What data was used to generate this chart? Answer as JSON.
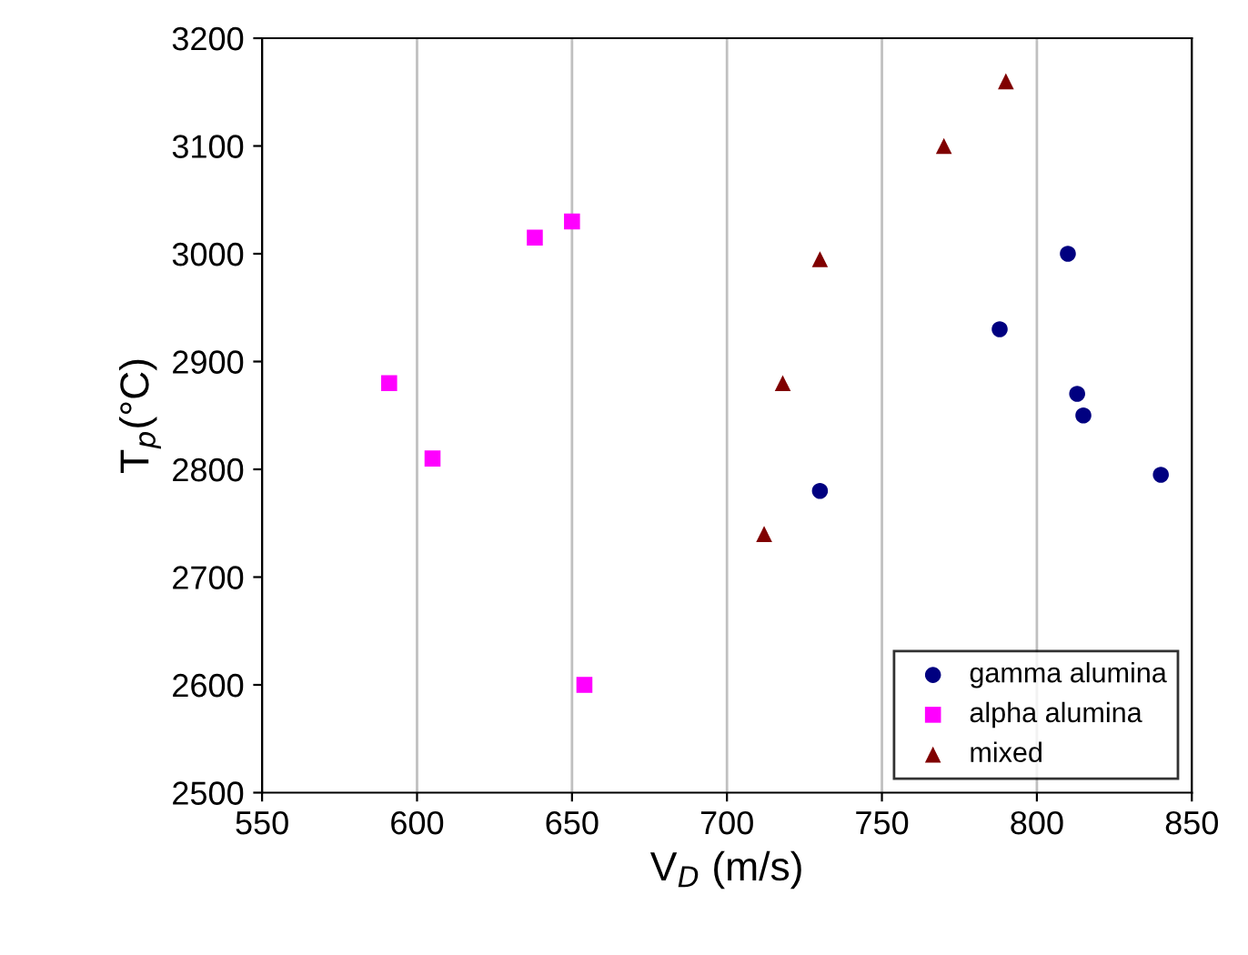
{
  "chart_data": {
    "type": "scatter",
    "xlabel": "V$_{D}$ (m/s)",
    "ylabel": "T$_{p}$(°C)",
    "xlim": [
      550,
      850
    ],
    "xticks": [
      550,
      600,
      650,
      700,
      750,
      800,
      850
    ],
    "ylim": [
      2500,
      3200
    ],
    "yticks": [
      2500,
      2600,
      2700,
      2800,
      2900,
      3000,
      3100,
      3200
    ],
    "grid": "x",
    "legend": "bottom right",
    "series": [
      {
        "name": "gamma alumina",
        "color": "#000080",
        "marker": "circle",
        "x": [
          730,
          788,
          810,
          813,
          815,
          840
        ],
        "values": [
          2780,
          2930,
          3000,
          2870,
          2850,
          2795
        ]
      },
      {
        "name": "alpha alumina",
        "color": "#ff00ff",
        "marker": "square",
        "x": [
          591,
          605,
          638,
          650,
          654
        ],
        "values": [
          2880,
          2810,
          3015,
          3030,
          2600
        ]
      },
      {
        "name": "mixed",
        "color": "#800000",
        "marker": "triangle",
        "x": [
          712,
          718,
          730,
          770,
          790
        ],
        "values": [
          2740,
          2880,
          2995,
          3100,
          3160
        ]
      }
    ]
  }
}
